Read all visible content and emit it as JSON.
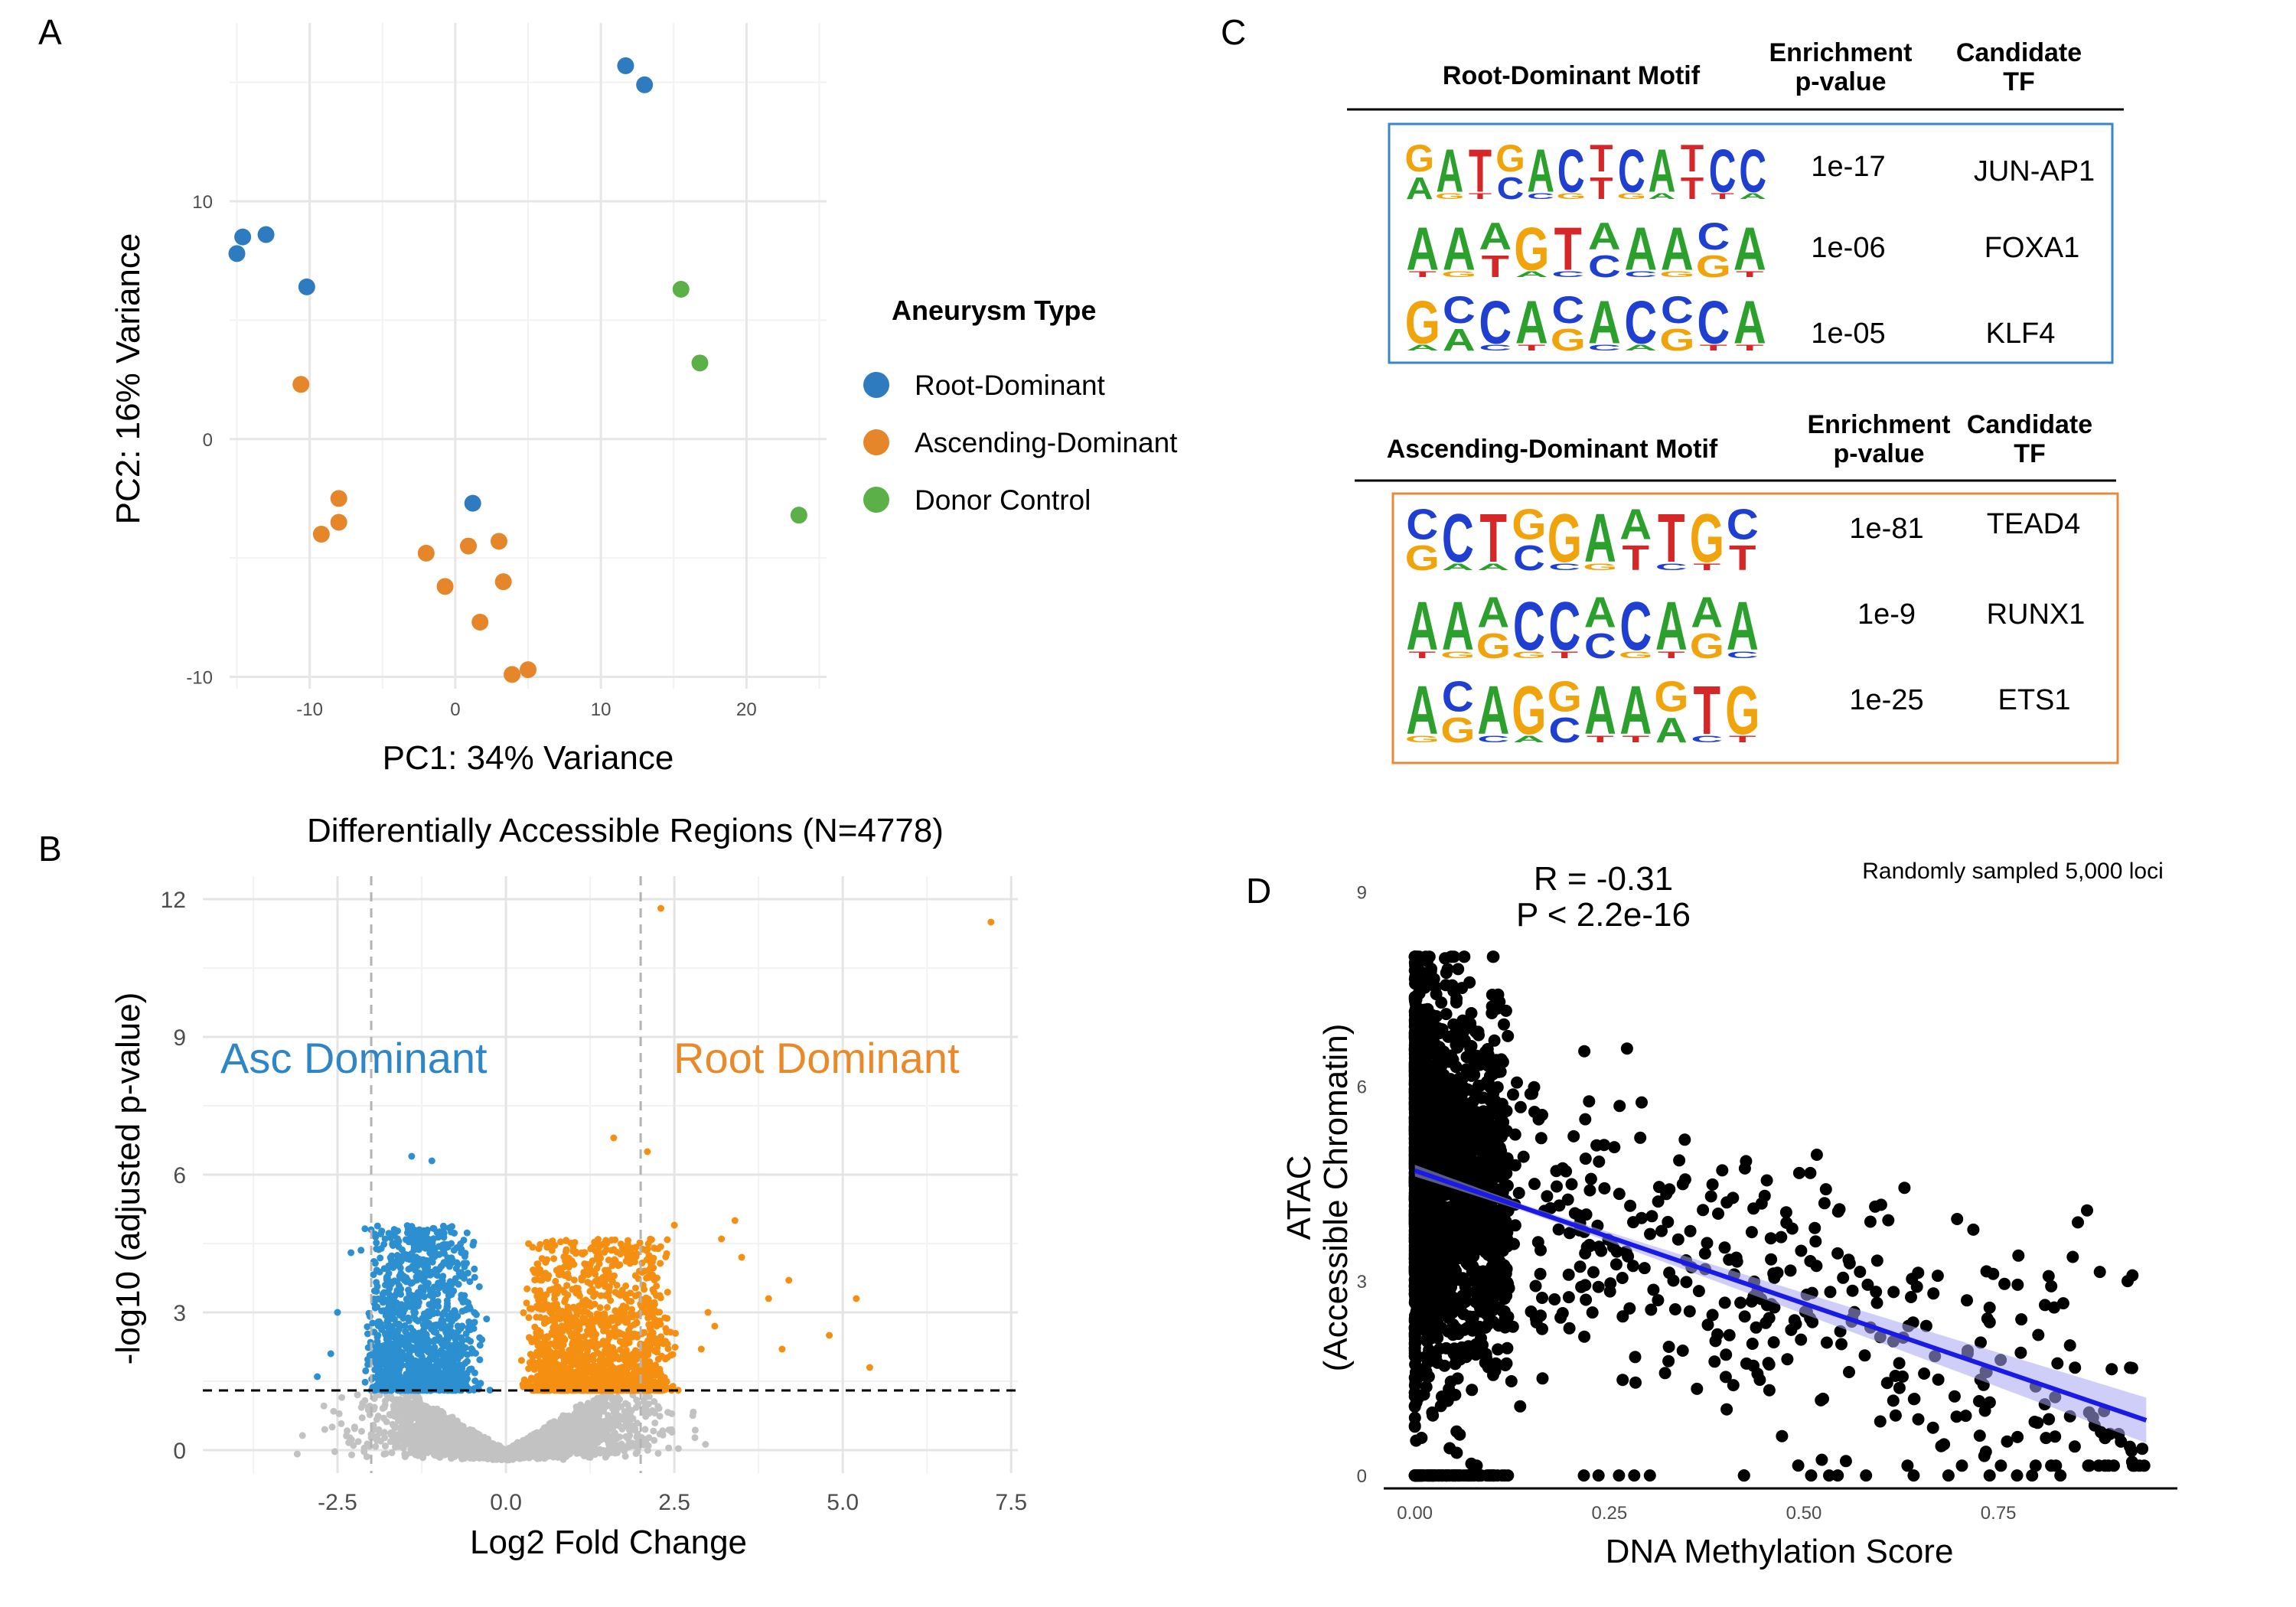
{
  "panel_letters": {
    "a": "A",
    "b": "B",
    "c": "C",
    "d": "D"
  },
  "colors": {
    "root": "#2f7bbf",
    "ascending": "#e5862b",
    "donor": "#5bb048",
    "volcano_blue": "#2b8fd0",
    "volcano_orange": "#f58f12",
    "volcano_gray": "#c2c2c2",
    "regression": "#1a1ae6",
    "ci_band": "#a6a6f2"
  },
  "chart_data": [
    {
      "id": "A",
      "type": "scatter",
      "title": "",
      "xlabel": "PC1: 34% Variance",
      "ylabel": "PC2: 16% Variance",
      "xlim": [
        -15.5,
        25.5
      ],
      "ylim": [
        -10.5,
        17.5
      ],
      "xticks": [
        -10,
        0,
        10,
        20
      ],
      "yticks": [
        -10,
        0,
        10
      ],
      "xtick_labels": [
        "-10",
        "0",
        "10",
        "20"
      ],
      "ytick_labels": [
        "-10",
        "0",
        "10"
      ],
      "legend_title": "Aneurysm Type",
      "legend_labels": [
        "Root-Dominant",
        "Ascending-Dominant",
        "Donor Control"
      ],
      "series": [
        {
          "name": "Root-Dominant",
          "points": [
            [
              -15.0,
              7.8
            ],
            [
              -14.6,
              8.5
            ],
            [
              -13.0,
              8.6
            ],
            [
              -10.2,
              6.4
            ],
            [
              1.2,
              -2.7
            ],
            [
              11.7,
              15.7
            ],
            [
              13.0,
              14.9
            ]
          ]
        },
        {
          "name": "Ascending-Dominant",
          "points": [
            [
              -10.6,
              2.3
            ],
            [
              -8.0,
              -2.5
            ],
            [
              -8.0,
              -3.5
            ],
            [
              -9.2,
              -4.0
            ],
            [
              -2.0,
              -4.8
            ],
            [
              -0.7,
              -6.2
            ],
            [
              0.9,
              -4.5
            ],
            [
              3.0,
              -4.3
            ],
            [
              3.3,
              -6.0
            ],
            [
              1.7,
              -7.7
            ],
            [
              3.9,
              -9.9
            ],
            [
              5.0,
              -9.7
            ]
          ]
        },
        {
          "name": "Donor Control",
          "points": [
            [
              15.5,
              6.3
            ],
            [
              16.8,
              3.2
            ],
            [
              23.6,
              -3.2
            ]
          ]
        }
      ]
    },
    {
      "id": "B",
      "type": "scatter",
      "title": "Differentially Accessible Regions (N=4778)",
      "xlabel": "Log2 Fold Change",
      "ylabel": "-log10 (adjusted p-value)",
      "xlim": [
        -4.5,
        7.6
      ],
      "ylim": [
        -0.5,
        12.5
      ],
      "xticks": [
        -2.5,
        0.0,
        2.5,
        5.0,
        7.5
      ],
      "yticks": [
        0,
        3,
        6,
        9,
        12
      ],
      "xtick_labels": [
        "-2.5",
        "0.0",
        "2.5",
        "5.0",
        "7.5"
      ],
      "ytick_labels": [
        "0",
        "3",
        "6",
        "9",
        "12"
      ],
      "annotations": [
        "Asc Dominant",
        "Root Dominant"
      ],
      "fc_thresholds": [
        -2,
        2
      ],
      "p_threshold": 1.3,
      "n_gray": 3400,
      "n_blue": 1300,
      "n_orange": 1500,
      "seed": 7,
      "outliers_orange": [
        [
          2.3,
          11.8
        ],
        [
          7.2,
          11.5
        ],
        [
          1.6,
          6.8
        ],
        [
          2.1,
          6.5
        ],
        [
          3.4,
          5.0
        ],
        [
          2.5,
          4.9
        ],
        [
          3.2,
          4.6
        ],
        [
          3.5,
          4.2
        ],
        [
          4.2,
          3.7
        ],
        [
          3.9,
          3.3
        ],
        [
          5.2,
          3.3
        ],
        [
          4.1,
          2.2
        ],
        [
          4.8,
          2.5
        ],
        [
          5.4,
          1.8
        ],
        [
          2.9,
          2.2
        ],
        [
          3.0,
          3.0
        ],
        [
          3.1,
          2.7
        ]
      ],
      "outliers_blue": [
        [
          -1.4,
          6.4
        ],
        [
          -1.1,
          6.3
        ],
        [
          -2.0,
          4.8
        ],
        [
          -2.3,
          4.3
        ],
        [
          -2.5,
          3.0
        ],
        [
          -1.9,
          2.5
        ],
        [
          -2.6,
          2.1
        ],
        [
          -2.8,
          1.6
        ]
      ]
    },
    {
      "id": "D",
      "type": "scatter",
      "title": "",
      "xlabel": "DNA Methylation Score",
      "ylabel_lines": [
        "ATAC",
        "(Accessible Chromatin)"
      ],
      "xlim": [
        -0.04,
        0.98
      ],
      "ylim": [
        -0.2,
        9.3
      ],
      "xticks": [
        0.0,
        0.25,
        0.5,
        0.75
      ],
      "yticks": [
        0,
        3,
        6,
        9
      ],
      "xtick_labels": [
        "0.00",
        "0.25",
        "0.50",
        "0.75"
      ],
      "ytick_labels": [
        "0",
        "3",
        "6",
        "9"
      ],
      "stat_lines": [
        "R = -0.31",
        "P < 2.2e-16"
      ],
      "note": "Randomly sampled 5,000 loci",
      "regression": {
        "x0": 0.0,
        "y0": 4.7,
        "x1": 0.94,
        "y1": 0.85,
        "ci": [
          0.05,
          0.35
        ]
      },
      "n_points": 5000,
      "seed": 11
    }
  ],
  "motif_table_root": {
    "headers": {
      "motif": "Root-Dominant Motif",
      "pval_line1": "Enrichment",
      "pval_line2": "p-value",
      "tf_line1": "Candidate",
      "tf_line2": "TF"
    },
    "border_color": "#3a87c7",
    "rows": [
      {
        "pvalue": "1e-17",
        "tf": "JUN-AP1",
        "main": "GATGACTCATCC",
        "sub": "AGTCCGTGATTA"
      },
      {
        "pvalue": "1e-06",
        "tf": "FOXA1",
        "main": "AAAGTAAACA",
        "sub": "TGTACCCGGT"
      },
      {
        "pvalue": "1e-05",
        "tf": "KLF4",
        "main": "GCCACACCCA",
        "sub": "AACTGCAGTT"
      }
    ]
  },
  "motif_table_asc": {
    "headers": {
      "motif": "Ascending-Dominant Motif",
      "pval_line1": "Enrichment",
      "pval_line2": "p-value",
      "tf_line1": "Candidate",
      "tf_line2": "TF"
    },
    "border_color": "#e8893a",
    "rows": [
      {
        "pvalue": "1e-81",
        "tf": "TEAD4",
        "main": "CCTGGAATGC",
        "sub": "GAACCGTCTT"
      },
      {
        "pvalue": "1e-9",
        "tf": "RUNX1",
        "main": "AAACCACAAA",
        "sub": "TGGGTCGTGC"
      },
      {
        "pvalue": "1e-25",
        "tf": "ETS1",
        "main": "ACAGGAAGTG",
        "sub": "GGCACTTACT"
      }
    ]
  }
}
